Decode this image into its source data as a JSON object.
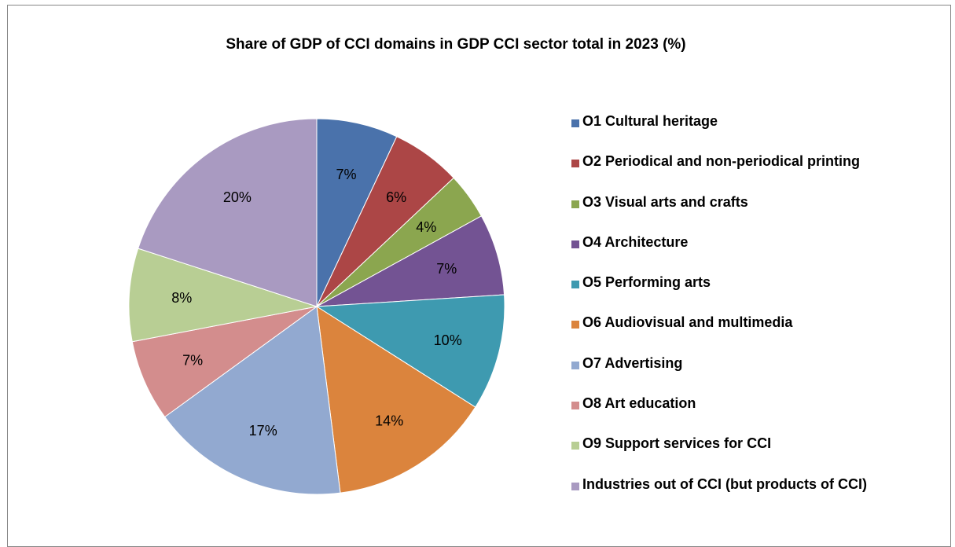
{
  "chart_data": {
    "type": "pie",
    "title": "Share of GDP of CCI domains in GDP CCI sector total in 2023 (%)",
    "categories": [
      "O1  Cultural heritage",
      "O2  Periodical and non-periodical printing",
      "O3  Visual arts and crafts",
      "O4  Architecture",
      "O5  Performing arts",
      "O6  Audiovisual and multimedia",
      "O7  Advertising",
      "O8  Art education",
      "O9  Support services for CCI",
      "Industries out of CCI (but products of CCI)"
    ],
    "values": [
      7,
      6,
      4,
      7,
      10,
      14,
      17,
      7,
      8,
      20
    ],
    "value_labels": [
      "7%",
      "6%",
      "4%",
      "7%",
      "10%",
      "14%",
      "17%",
      "7%",
      "8%",
      "20%"
    ],
    "colors": [
      "#4a72ab",
      "#ac4646",
      "#8ba64f",
      "#735393",
      "#3e9ab0",
      "#db843d",
      "#92a9d0",
      "#d38d8d",
      "#b8ce94",
      "#a99ac1"
    ],
    "start_angle": "12 o'clock",
    "direction": "clockwise",
    "legend_position": "right"
  }
}
